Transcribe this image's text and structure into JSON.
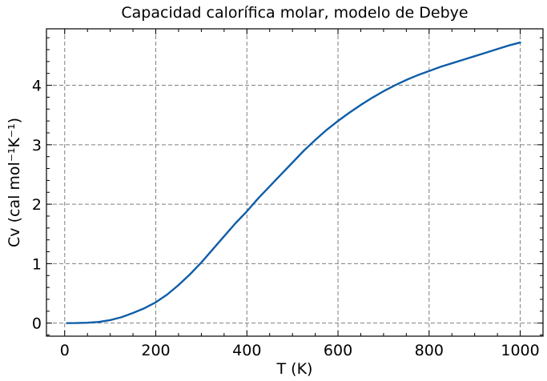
{
  "chart_data": {
    "type": "line",
    "title": "Capacidad calorífica molar, modelo de Debye",
    "xlabel": "T (K)",
    "ylabel": "Cv (cal mol⁻¹K⁻¹)",
    "xlim": [
      -40,
      1050
    ],
    "ylim": [
      -0.22,
      4.95
    ],
    "xticks": [
      0,
      200,
      400,
      600,
      800,
      1000
    ],
    "yticks": [
      0,
      1,
      2,
      3,
      4
    ],
    "grid": true,
    "series": [
      {
        "color": "#0f5ea8",
        "x": [
          5,
          25,
          50,
          75,
          100,
          125,
          150,
          175,
          200,
          225,
          250,
          275,
          300,
          325,
          350,
          375,
          400,
          425,
          450,
          475,
          500,
          525,
          550,
          575,
          600,
          625,
          650,
          675,
          700,
          725,
          750,
          775,
          800,
          825,
          850,
          875,
          900,
          925,
          950,
          975,
          1000
        ],
        "y": [
          0.0,
          0.001,
          0.007,
          0.02,
          0.05,
          0.1,
          0.17,
          0.25,
          0.35,
          0.48,
          0.64,
          0.82,
          1.02,
          1.24,
          1.46,
          1.68,
          1.88,
          2.1,
          2.3,
          2.5,
          2.7,
          2.9,
          3.08,
          3.25,
          3.4,
          3.54,
          3.67,
          3.79,
          3.9,
          4.0,
          4.09,
          4.17,
          4.24,
          4.31,
          4.37,
          4.43,
          4.49,
          4.55,
          4.61,
          4.67,
          4.72
        ]
      }
    ]
  }
}
